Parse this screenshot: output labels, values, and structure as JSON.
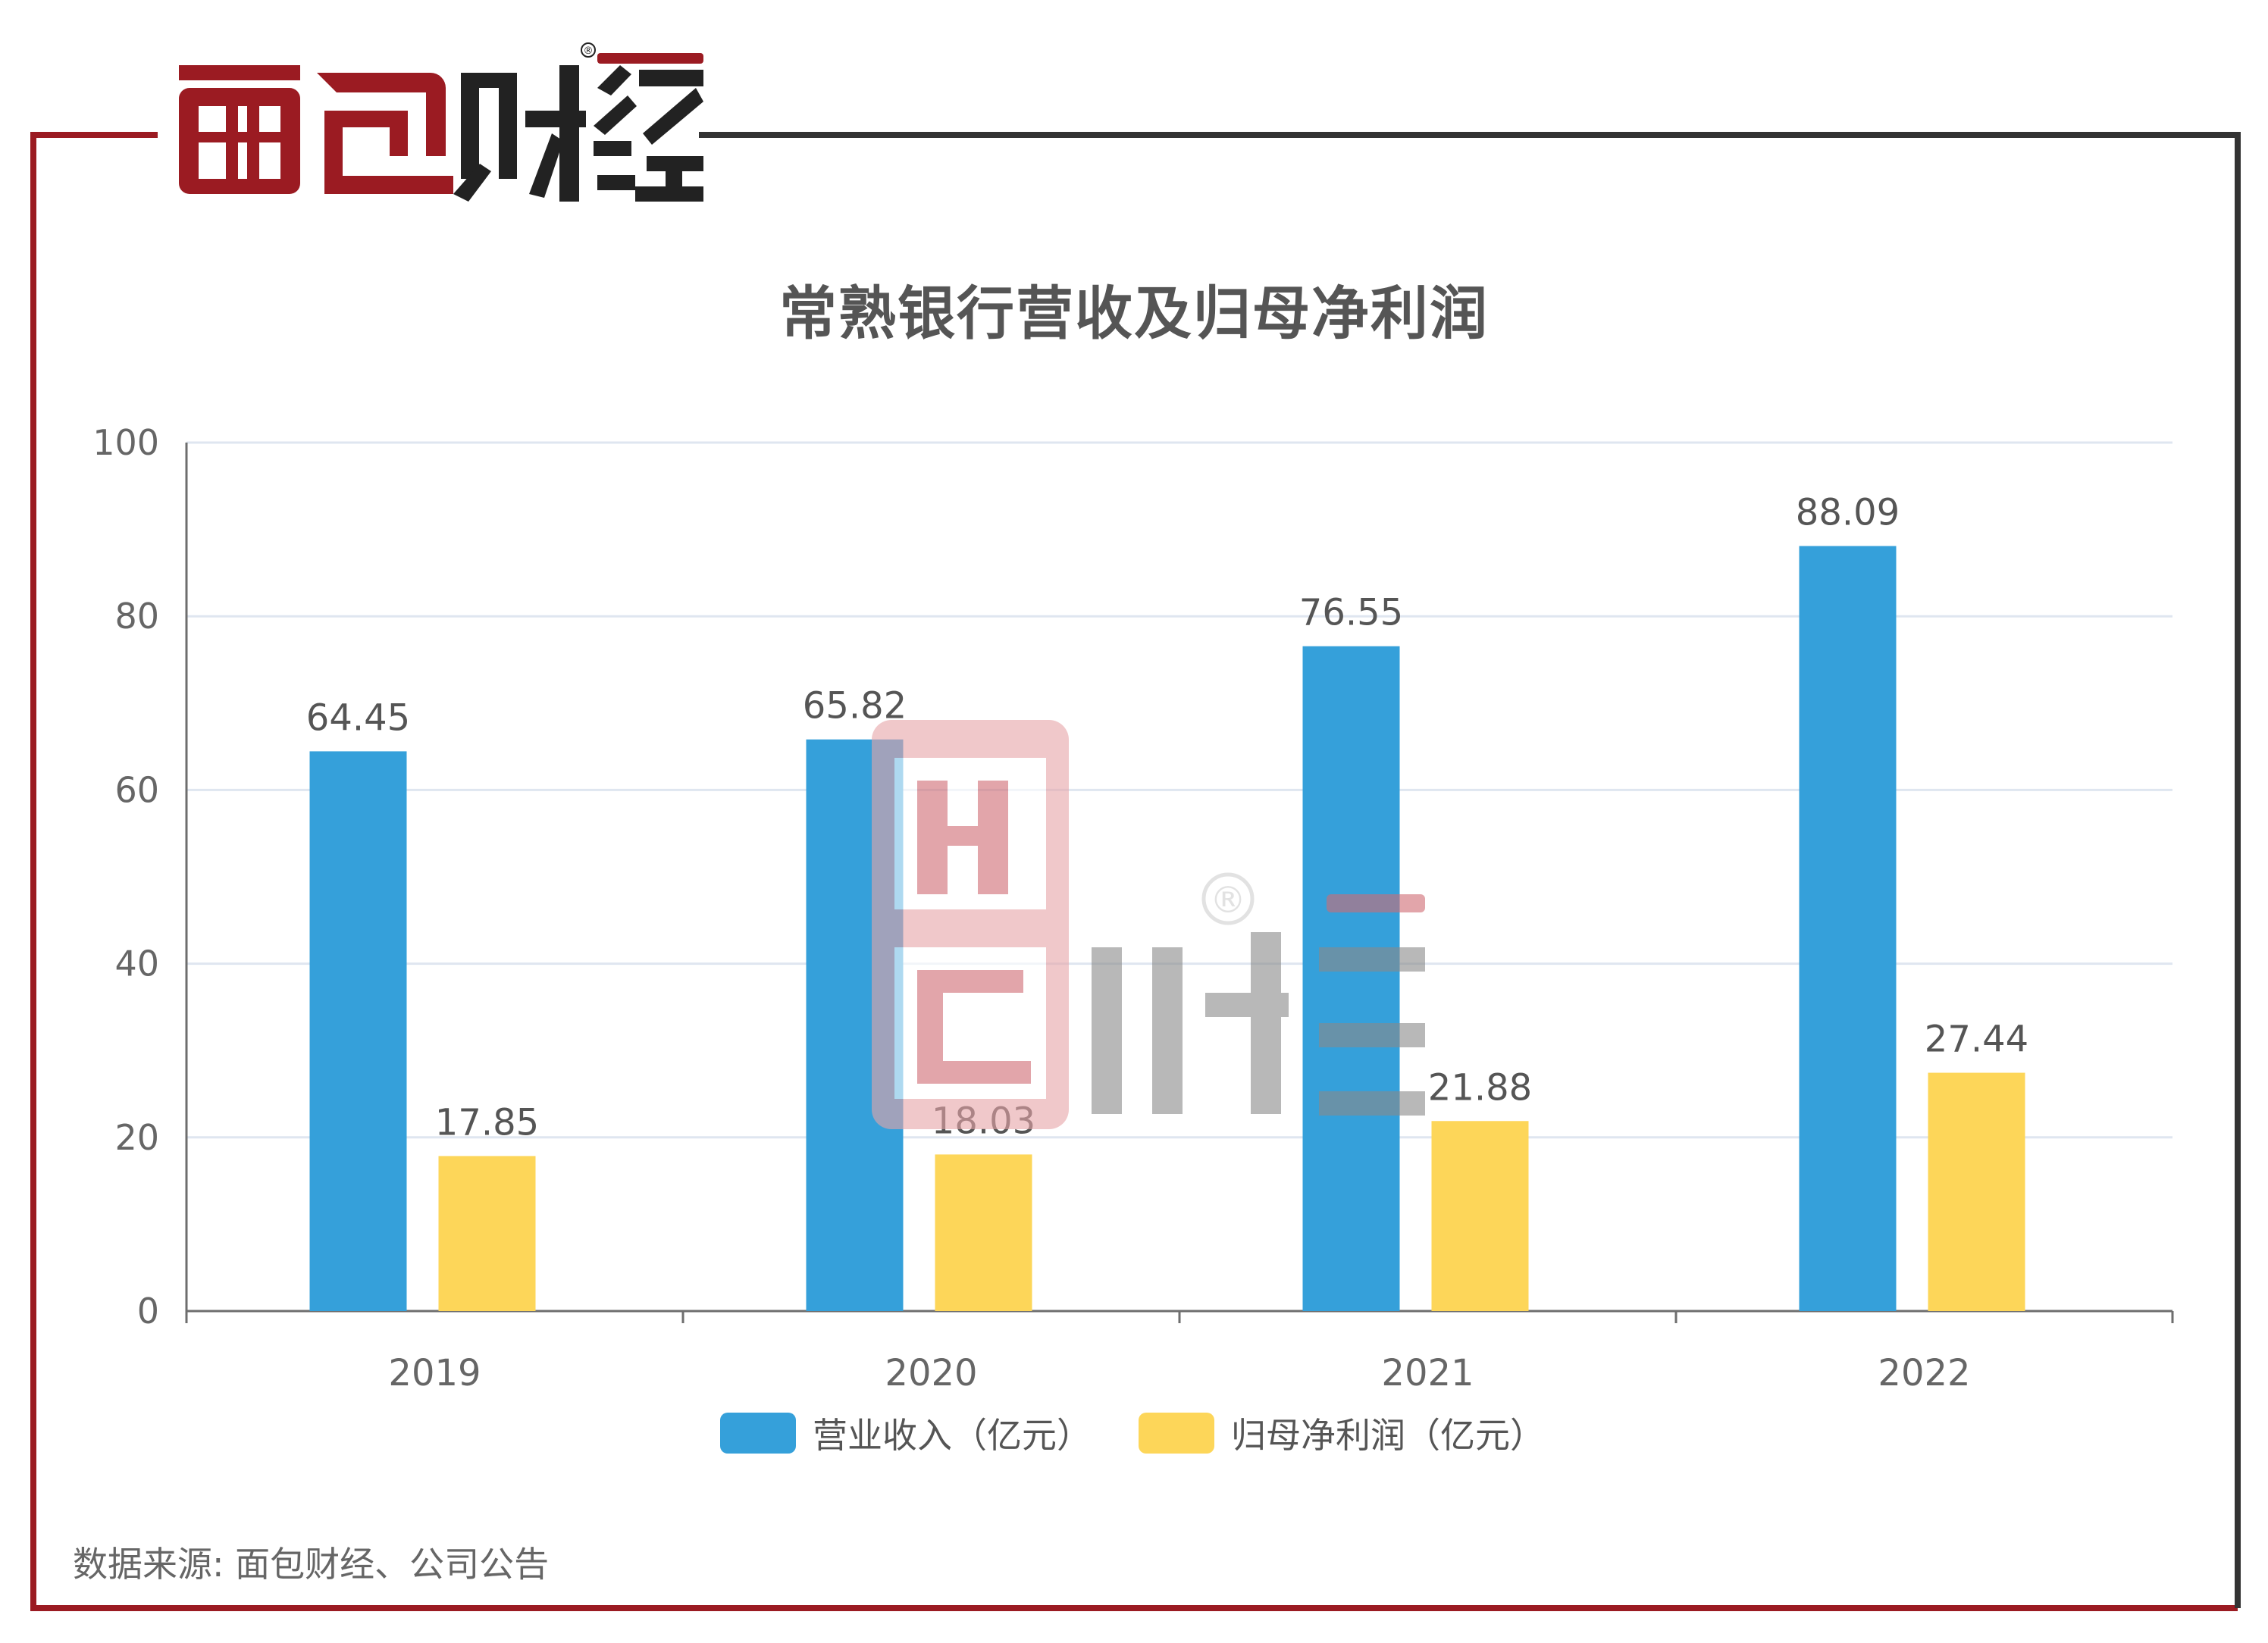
{
  "brand": {
    "logo_text": "面包财经",
    "registered_mark": "®"
  },
  "colors": {
    "frame_red": "#9b1b22",
    "frame_dark": "#333333",
    "revenue": "#35a0da",
    "profit": "#fdd659",
    "grid": "#dfe6f0",
    "axis": "#6e6e6e",
    "text": "#555555"
  },
  "source_note": "数据来源: 面包财经、公司公告",
  "chart_data": {
    "type": "bar",
    "title": "常熟银行营收及归母净利润",
    "categories": [
      "2019",
      "2020",
      "2021",
      "2022"
    ],
    "series": [
      {
        "name": "营业收入（亿元）",
        "values": [
          64.45,
          65.82,
          76.55,
          88.09
        ],
        "color": "#35a0da"
      },
      {
        "name": "归母净利润（亿元）",
        "values": [
          17.85,
          18.03,
          21.88,
          27.44
        ],
        "color": "#fdd659"
      }
    ],
    "value_labels": [
      [
        "64.45",
        "65.82",
        "76.55",
        "88.09"
      ],
      [
        "17.85",
        "18.03",
        "21.88",
        "27.44"
      ]
    ],
    "ylim": [
      0,
      100
    ],
    "yticks": [
      "0",
      "20",
      "40",
      "60",
      "80",
      "100"
    ],
    "xlabel": "",
    "ylabel": "",
    "grid": true,
    "legend_position": "bottom"
  }
}
